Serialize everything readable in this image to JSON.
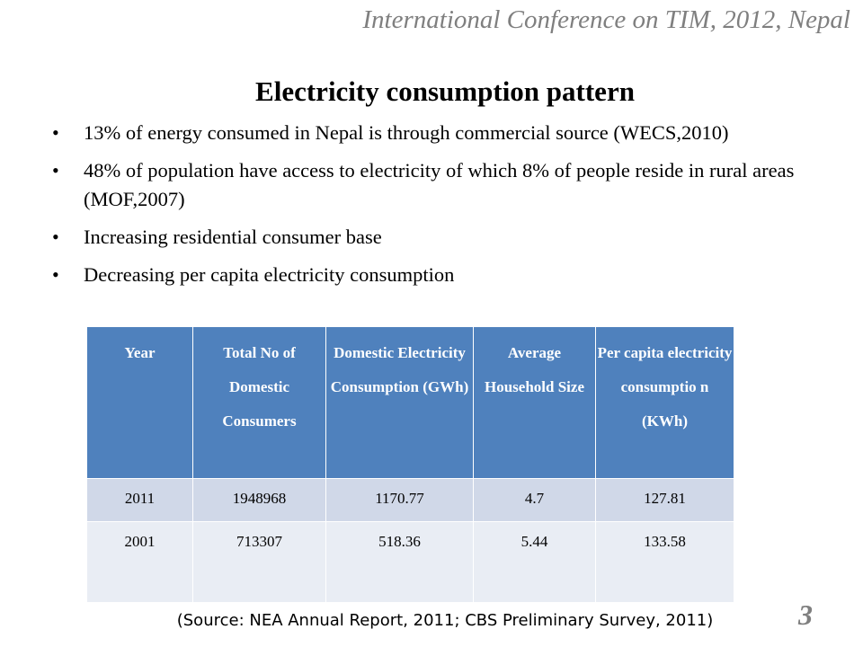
{
  "header": {
    "conference": "International Conference on TIM, 2012, Nepal"
  },
  "title": "Electricity consumption pattern",
  "bullets": [
    {
      "text": "13% of energy consumed in Nepal is through commercial source (WECS,2010)"
    },
    {
      "text": "48% of population have access to electricity of which 8% of people reside in rural areas (MOF,2007)"
    },
    {
      "text": "Increasing residential consumer  base"
    },
    {
      "text": "Decreasing per capita electricity consumption"
    }
  ],
  "table": {
    "headers": [
      "Year",
      "Total No of Domestic Consumers",
      "Domestic Electricity Consumption (GWh)",
      "Average Household Size",
      "Per capita electricity consumptio n (KWh)"
    ],
    "rows": [
      [
        "2011",
        "1948968",
        "1170.77",
        "4.7",
        "127.81"
      ],
      [
        "2001",
        "713307",
        "518.36",
        "5.44",
        "133.58"
      ]
    ]
  },
  "source": "(Source: NEA Annual Report, 2011; CBS Preliminary Survey, 2011)",
  "slide_number": "3",
  "colors": {
    "header_fill": "#4f81bd",
    "row_odd_fill": "#d0d8e8",
    "row_even_fill": "#e9edf4",
    "muted_text": "#7f7f7f"
  }
}
